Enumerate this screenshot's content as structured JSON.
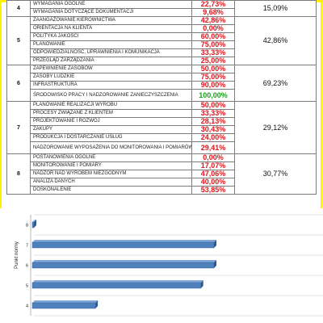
{
  "groups": [
    {
      "number": "4",
      "total": "15,09%",
      "rows": [
        {
          "name": "WYMAGANIA OGÓLNE",
          "value": "22,73%",
          "color": "red"
        },
        {
          "name": "WYMAGANIA DOTYCZĄCE DOKUMENTACJI",
          "value": "9,68%",
          "color": "red"
        }
      ]
    },
    {
      "number": "5",
      "total": "42,86%",
      "rows": [
        {
          "name": "ZAANGAŻOWANIE KIEROWNICTWA",
          "value": "42,86%",
          "color": "red"
        },
        {
          "name": "ORIENTACJA NA KLIENTA",
          "value": "0,00%",
          "color": "red"
        },
        {
          "name": "POLITYKA JAKOŚCI",
          "value": "60,00%",
          "color": "red"
        },
        {
          "name": "PLANOWANIE",
          "value": "75,00%",
          "color": "red"
        },
        {
          "name": "ODPOWIEDZIALNOŚĆ, UPRAWNIENIA I KOMUNIKACJA",
          "value": "33,33%",
          "color": "red"
        },
        {
          "name": "PRZEGLĄD ZARZĄDZANIA",
          "value": "25,00%",
          "color": "red"
        }
      ]
    },
    {
      "number": "6",
      "total": "69,23%",
      "rows": [
        {
          "name": "ZAPEWNIENIE ZASOBÓW",
          "value": "50,00%",
          "color": "red"
        },
        {
          "name": "ZASOBY LUDZKIE",
          "value": "75,00%",
          "color": "red"
        },
        {
          "name": "INFRASTRUKTURA",
          "value": "90,00%",
          "color": "red"
        },
        {
          "name": "ŚRODOWISKO PRACY I NADZOROWANIE ZANIECZYSZCZENIA",
          "value": "100,00%",
          "color": "green"
        }
      ]
    },
    {
      "number": "7",
      "total": "29,12%",
      "rows": [
        {
          "name": "PLANOWANIE REALIZACJI WYROBU",
          "value": "50,00%",
          "color": "red"
        },
        {
          "name": "PROCESY ZWIĄZANE Z KLIENTEM",
          "value": "33,33%",
          "color": "red"
        },
        {
          "name": "PROJEKTOWANIE I ROZWÓJ",
          "value": "28,13%",
          "color": "red"
        },
        {
          "name": "ZAKUPY",
          "value": "30,43%",
          "color": "red"
        },
        {
          "name": "PRODUKCJA I DOSTARCZANIE USŁUG",
          "value": "24,00%",
          "color": "red"
        },
        {
          "name": "NADZOROWANIE WYPOSAŻENIA DO MONITOROWANIA I POMIARÓW",
          "value": "29,41%",
          "color": "red"
        }
      ]
    },
    {
      "number": "8",
      "total": "30,77%",
      "rows": [
        {
          "name": "POSTANOWIENIA OGÓLNE",
          "value": "0,00%",
          "color": "red"
        },
        {
          "name": "MONITOROWANIE I POMIARY",
          "value": "17,07%",
          "color": "red"
        },
        {
          "name": "NADZÓR NAD WYROBEM NIEZGODNYM",
          "value": "47,06%",
          "color": "red"
        },
        {
          "name": "ANALIZA DANYCH",
          "value": "40,00%",
          "color": "red"
        },
        {
          "name": "DOSKONALENIE",
          "value": "53,85%",
          "color": "red"
        }
      ]
    }
  ],
  "chart_data": {
    "type": "bar",
    "orientation": "horizontal",
    "ylabel": "Punkt normy",
    "categories": [
      "8",
      "7",
      "6",
      "5",
      "4"
    ],
    "values": [
      0.5,
      100,
      100,
      94,
      46
    ],
    "xlim": [
      0,
      100
    ],
    "bar_color": "#4f81bd",
    "grid": true
  }
}
